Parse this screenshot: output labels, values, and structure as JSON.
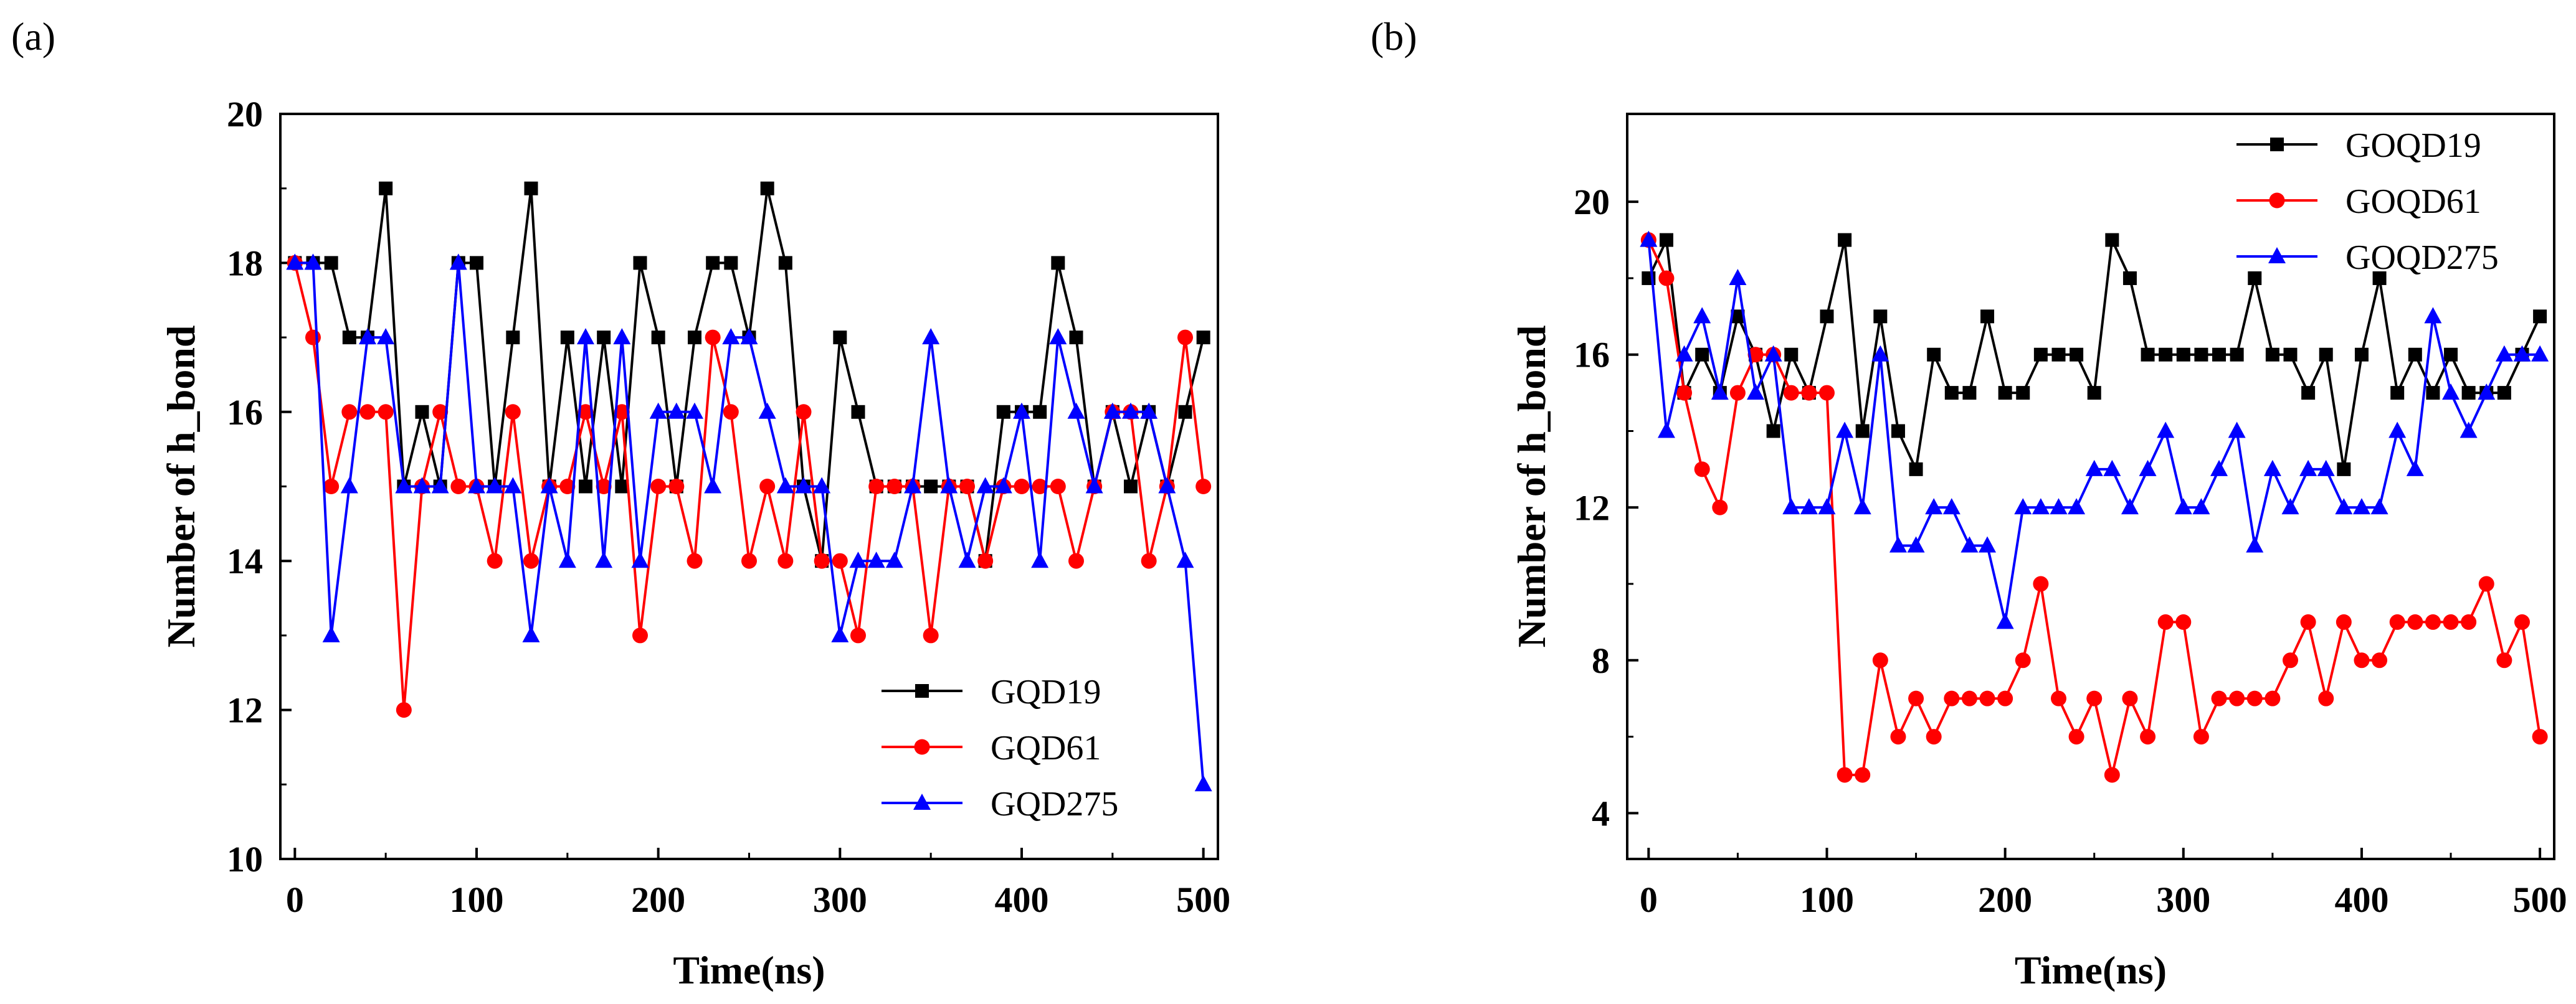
{
  "chart_data": [
    {
      "type": "line",
      "panel_label": "(a)",
      "xlabel": "Time(ns)",
      "ylabel": "Number of h_bond",
      "xlim": [
        -8,
        508
      ],
      "ylim": [
        10,
        20
      ],
      "xticks": [
        0,
        100,
        200,
        300,
        400,
        500
      ],
      "yticks": [
        10,
        12,
        14,
        16,
        18,
        20
      ],
      "legend_position": "bottom-right",
      "x": [
        0,
        10,
        20,
        30,
        40,
        50,
        60,
        70,
        80,
        90,
        100,
        110,
        120,
        130,
        140,
        150,
        160,
        170,
        180,
        190,
        200,
        210,
        220,
        230,
        240,
        250,
        260,
        270,
        280,
        290,
        300,
        310,
        320,
        330,
        340,
        350,
        360,
        370,
        380,
        390,
        400,
        410,
        420,
        430,
        440,
        450,
        460,
        470,
        480,
        490,
        500
      ],
      "series": [
        {
          "name": "GQD19",
          "color": "#000000",
          "marker": "square",
          "values": [
            18,
            18,
            18,
            17,
            17,
            19,
            15,
            16,
            15,
            18,
            18,
            15,
            17,
            19,
            15,
            17,
            15,
            17,
            15,
            18,
            17,
            15,
            17,
            18,
            18,
            17,
            19,
            18,
            15,
            14,
            17,
            16,
            15,
            15,
            15,
            15,
            15,
            15,
            14,
            16,
            16,
            16,
            18,
            17,
            15,
            16,
            15,
            16,
            15,
            16,
            17
          ]
        },
        {
          "name": "GQD61",
          "color": "#ff0000",
          "marker": "circle",
          "values": [
            18,
            17,
            15,
            16,
            16,
            16,
            12,
            15,
            16,
            15,
            15,
            14,
            16,
            14,
            15,
            15,
            16,
            15,
            16,
            13,
            15,
            15,
            14,
            17,
            16,
            14,
            15,
            14,
            16,
            14,
            14,
            13,
            15,
            15,
            15,
            13,
            15,
            15,
            14,
            15,
            15,
            15,
            15,
            14,
            15,
            16,
            16,
            14,
            15,
            17,
            15
          ]
        },
        {
          "name": "GQD275",
          "color": "#0000ff",
          "marker": "triangle",
          "values": [
            18,
            18,
            13,
            15,
            17,
            17,
            15,
            15,
            15,
            18,
            15,
            15,
            15,
            13,
            15,
            14,
            17,
            14,
            17,
            14,
            16,
            16,
            16,
            15,
            17,
            17,
            16,
            15,
            15,
            15,
            13,
            14,
            14,
            14,
            15,
            17,
            15,
            14,
            15,
            15,
            16,
            14,
            17,
            16,
            15,
            16,
            16,
            16,
            15,
            14,
            11
          ]
        }
      ]
    },
    {
      "type": "line",
      "panel_label": "(b)",
      "xlabel": "Time(ns)",
      "ylabel": "Number of h_bond",
      "xlim": [
        -12,
        508
      ],
      "ylim": [
        2.8,
        22.3
      ],
      "xticks": [
        0,
        100,
        200,
        300,
        400,
        500
      ],
      "yticks": [
        4,
        8,
        12,
        16,
        20
      ],
      "legend_position": "top-right",
      "x": [
        0,
        10,
        20,
        30,
        40,
        50,
        60,
        70,
        80,
        90,
        100,
        110,
        120,
        130,
        140,
        150,
        160,
        170,
        180,
        190,
        200,
        210,
        220,
        230,
        240,
        250,
        260,
        270,
        280,
        290,
        300,
        310,
        320,
        330,
        340,
        350,
        360,
        370,
        380,
        390,
        400,
        410,
        420,
        430,
        440,
        450,
        460,
        470,
        480,
        490,
        500
      ],
      "series": [
        {
          "name": "GOQD19",
          "color": "#000000",
          "marker": "square",
          "values": [
            18,
            19,
            15,
            16,
            15,
            17,
            16,
            14,
            16,
            15,
            17,
            19,
            14,
            17,
            14,
            13,
            16,
            15,
            15,
            17,
            15,
            15,
            16,
            16,
            16,
            15,
            19,
            18,
            16,
            16,
            16,
            16,
            16,
            16,
            18,
            16,
            16,
            15,
            16,
            13,
            16,
            18,
            15,
            16,
            15,
            16,
            15,
            15,
            15,
            16,
            17
          ]
        },
        {
          "name": "GOQD61",
          "color": "#ff0000",
          "marker": "circle",
          "values": [
            19,
            18,
            15,
            13,
            12,
            15,
            16,
            16,
            15,
            15,
            15,
            5,
            5,
            8,
            6,
            7,
            6,
            7,
            7,
            7,
            7,
            8,
            10,
            7,
            6,
            7,
            5,
            7,
            6,
            9,
            9,
            6,
            7,
            7,
            7,
            7,
            8,
            9,
            7,
            9,
            8,
            8,
            9,
            9,
            9,
            9,
            9,
            10,
            8,
            9,
            6
          ]
        },
        {
          "name": "GOQD275",
          "color": "#0000ff",
          "marker": "triangle",
          "values": [
            19,
            14,
            16,
            17,
            15,
            18,
            15,
            16,
            12,
            12,
            12,
            14,
            12,
            16,
            11,
            11,
            12,
            12,
            11,
            11,
            9,
            12,
            12,
            12,
            12,
            13,
            13,
            12,
            13,
            14,
            12,
            12,
            13,
            14,
            11,
            13,
            12,
            13,
            13,
            12,
            12,
            12,
            14,
            13,
            17,
            15,
            14,
            15,
            16,
            16,
            16
          ]
        }
      ]
    }
  ]
}
